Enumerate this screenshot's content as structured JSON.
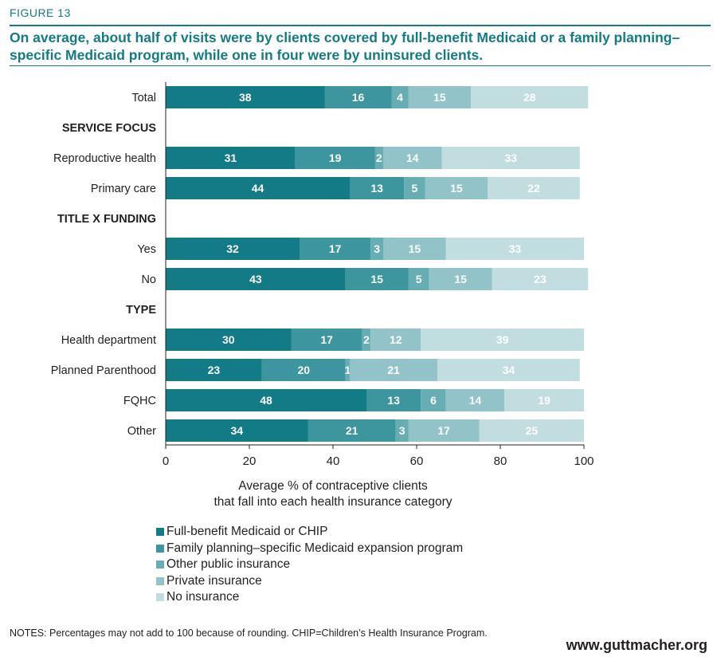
{
  "figure_label": "FIGURE 13",
  "title": "On average, about half of visits were by clients covered by full-benefit Medicaid or a family planning–specific Medicaid program, while one in four were by uninsured clients.",
  "x_axis_title_line1": "Average % of contraceptive clients",
  "x_axis_title_line2": "that fall into each health insurance category",
  "notes": "NOTES: Percentages may not add to 100 because of rounding. CHIP=Children’s Health Insurance Program.",
  "website": "www.guttmacher.org",
  "colors": [
    "#137b86",
    "#3d959d",
    "#67adb4",
    "#91c3c8",
    "#c1dde0"
  ],
  "legend": [
    "Full-benefit Medicaid or CHIP",
    "Family planning–specific Medicaid expansion program",
    "Other public insurance",
    "Private insurance",
    "No insurance"
  ],
  "chart_data": {
    "type": "bar",
    "orientation": "horizontal",
    "stacked": true,
    "xlim": [
      0,
      100
    ],
    "xticks": [
      0,
      20,
      40,
      60,
      80,
      100
    ],
    "grid": false,
    "legend_position": "bottom",
    "series": [
      {
        "name": "Full-benefit Medicaid or CHIP"
      },
      {
        "name": "Family planning–specific Medicaid expansion program"
      },
      {
        "name": "Other public insurance"
      },
      {
        "name": "Private insurance"
      },
      {
        "name": "No insurance"
      }
    ],
    "rows": [
      {
        "kind": "bar",
        "label": "Total",
        "values": [
          38,
          16,
          4,
          15,
          28
        ]
      },
      {
        "kind": "heading",
        "label": "SERVICE FOCUS"
      },
      {
        "kind": "bar",
        "label": "Reproductive health",
        "values": [
          31,
          19,
          2,
          14,
          33
        ]
      },
      {
        "kind": "bar",
        "label": "Primary care",
        "values": [
          44,
          13,
          5,
          15,
          22
        ]
      },
      {
        "kind": "heading",
        "label": "TITLE X FUNDING"
      },
      {
        "kind": "bar",
        "label": "Yes",
        "values": [
          32,
          17,
          3,
          15,
          33
        ]
      },
      {
        "kind": "bar",
        "label": "No",
        "values": [
          43,
          15,
          5,
          15,
          23
        ]
      },
      {
        "kind": "heading",
        "label": "TYPE"
      },
      {
        "kind": "bar",
        "label": "Health department",
        "values": [
          30,
          17,
          2,
          12,
          39
        ]
      },
      {
        "kind": "bar",
        "label": "Planned Parenthood",
        "values": [
          23,
          20,
          1,
          21,
          34
        ]
      },
      {
        "kind": "bar",
        "label": "FQHC",
        "values": [
          48,
          13,
          6,
          14,
          19
        ]
      },
      {
        "kind": "bar",
        "label": "Other",
        "values": [
          34,
          21,
          3,
          17,
          25
        ]
      }
    ]
  }
}
